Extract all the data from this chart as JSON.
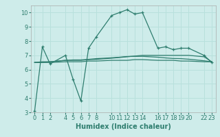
{
  "xlabel": "Humidex (Indice chaleur)",
  "bg_color": "#ceecea",
  "line_color": "#2e7d6e",
  "grid_color": "#b8e0dc",
  "xlim": [
    -0.5,
    23.5
  ],
  "ylim": [
    3,
    10.5
  ],
  "yticks": [
    3,
    4,
    5,
    6,
    7,
    8,
    9,
    10
  ],
  "xticks": [
    0,
    1,
    2,
    4,
    5,
    6,
    7,
    8,
    10,
    11,
    12,
    13,
    14,
    16,
    17,
    18,
    19,
    20,
    22,
    23
  ],
  "lines": [
    {
      "x": [
        0,
        1,
        2,
        4,
        5,
        6,
        7,
        8,
        10,
        11,
        12,
        13,
        14,
        16,
        17,
        18,
        19,
        20,
        22,
        23
      ],
      "y": [
        3.1,
        7.6,
        6.4,
        7.0,
        5.3,
        3.8,
        7.5,
        8.3,
        9.8,
        10.0,
        10.2,
        9.9,
        10.0,
        7.5,
        7.6,
        7.4,
        7.5,
        7.5,
        7.0,
        6.5
      ],
      "marker": true
    },
    {
      "x": [
        0,
        1,
        2,
        4,
        5,
        6,
        7,
        8,
        10,
        11,
        12,
        13,
        14,
        16,
        17,
        18,
        19,
        20,
        22,
        23
      ],
      "y": [
        6.5,
        6.5,
        6.5,
        6.55,
        6.55,
        6.55,
        6.6,
        6.6,
        6.65,
        6.65,
        6.65,
        6.7,
        6.7,
        6.65,
        6.65,
        6.65,
        6.6,
        6.6,
        6.55,
        6.55
      ],
      "marker": false
    },
    {
      "x": [
        0,
        1,
        2,
        4,
        5,
        6,
        7,
        8,
        10,
        11,
        12,
        13,
        14,
        16,
        17,
        18,
        19,
        20,
        22,
        23
      ],
      "y": [
        6.5,
        6.5,
        6.55,
        6.65,
        6.65,
        6.65,
        6.7,
        6.72,
        6.8,
        6.85,
        6.9,
        6.95,
        7.0,
        7.0,
        7.0,
        7.0,
        7.0,
        7.0,
        6.9,
        6.55
      ],
      "marker": false
    },
    {
      "x": [
        0,
        1,
        2,
        4,
        5,
        6,
        7,
        8,
        10,
        11,
        12,
        13,
        14,
        16,
        17,
        18,
        19,
        20,
        22,
        23
      ],
      "y": [
        6.5,
        6.55,
        6.55,
        6.65,
        6.68,
        6.68,
        6.72,
        6.77,
        6.83,
        6.87,
        6.92,
        6.93,
        6.93,
        6.87,
        6.82,
        6.78,
        6.77,
        6.73,
        6.62,
        6.55
      ],
      "marker": false
    }
  ]
}
